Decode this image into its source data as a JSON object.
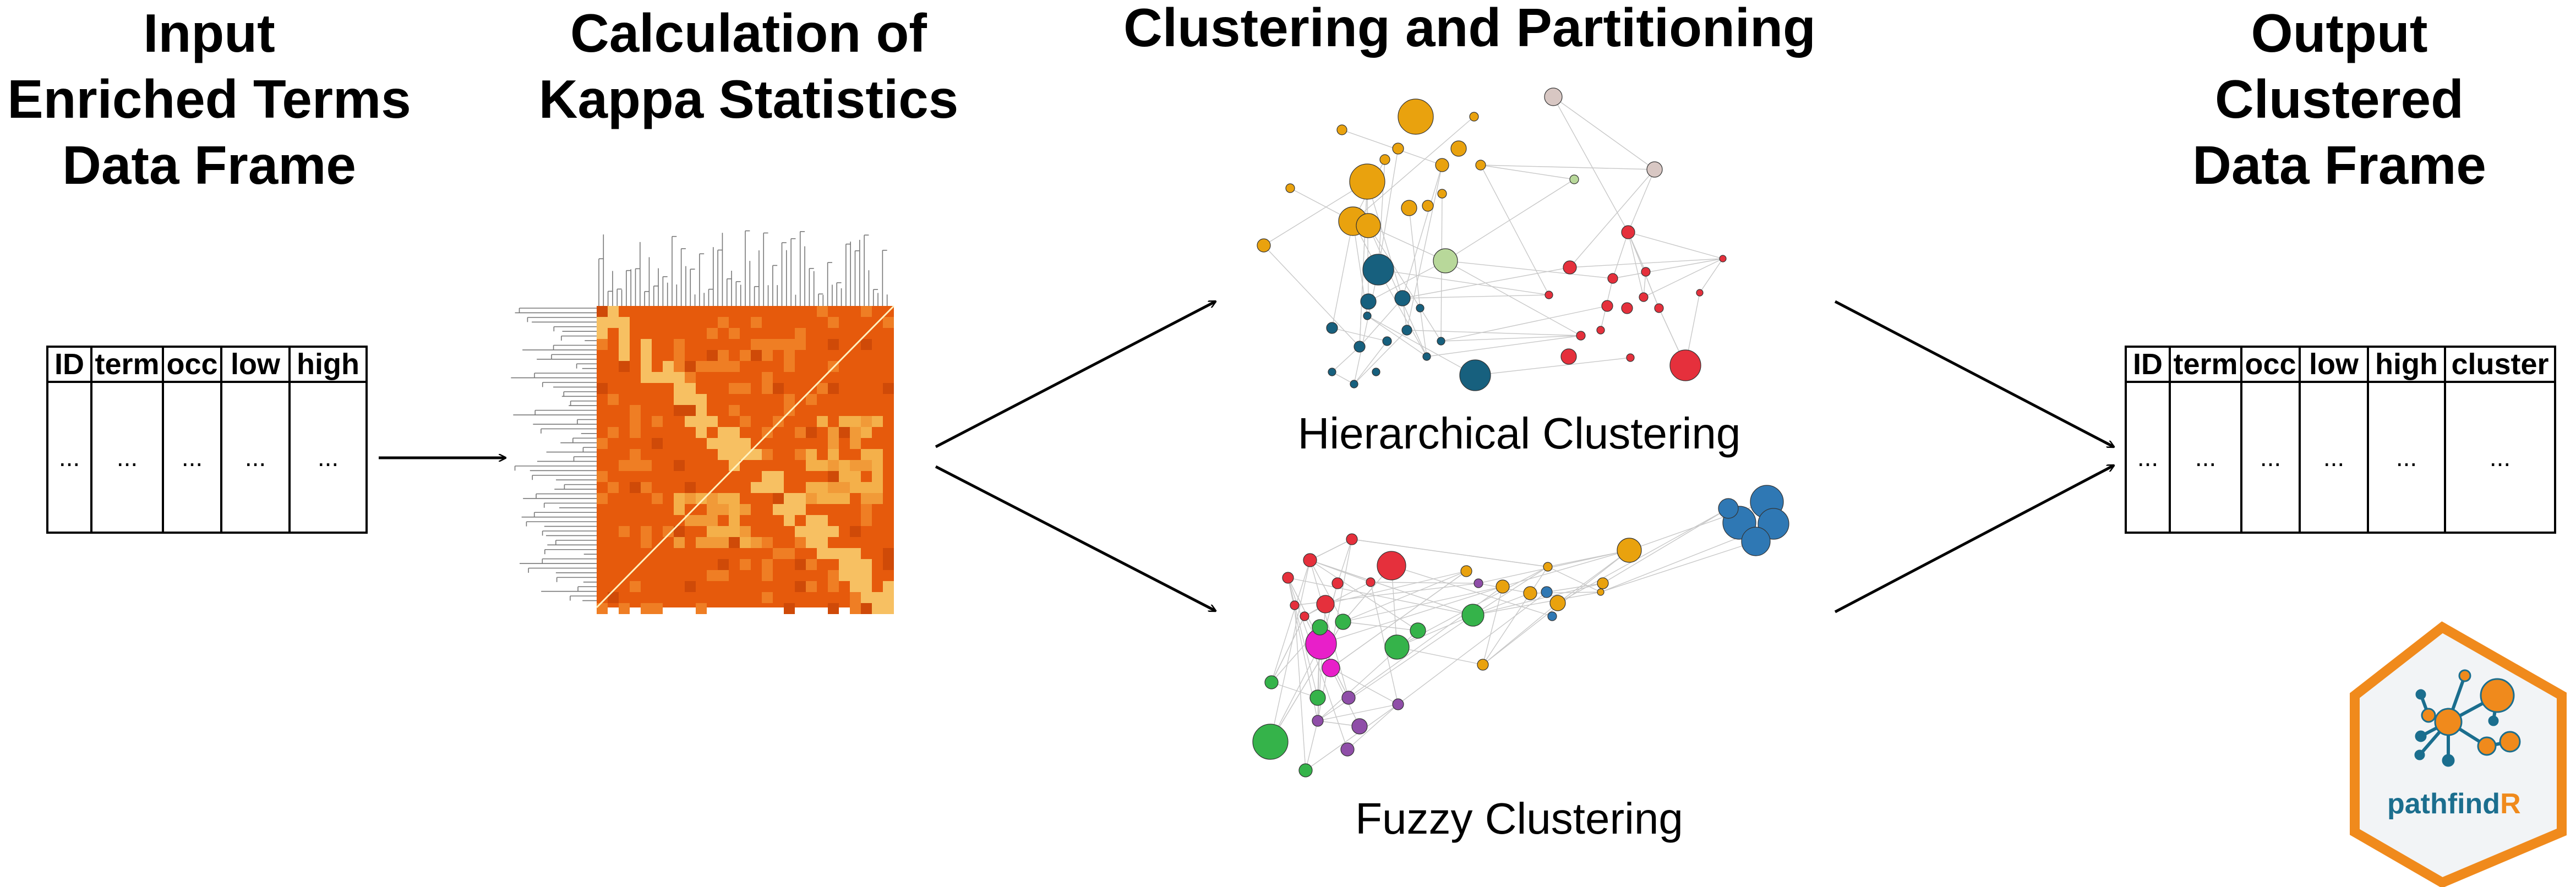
{
  "titles": {
    "input": [
      "Input",
      "Enriched Terms",
      "Data Frame"
    ],
    "kappa": [
      "Calculation of",
      "Kappa Statistics"
    ],
    "clustering": "Clustering and Partitioning",
    "output": [
      "Output",
      "Clustered",
      "Data Frame"
    ]
  },
  "input_table": {
    "headers": [
      "ID",
      "term",
      "occ",
      "low",
      "high"
    ],
    "cells": [
      "...",
      "...",
      "...",
      "...",
      "..."
    ]
  },
  "output_table": {
    "headers": [
      "ID",
      "term",
      "occ",
      "low",
      "high",
      "cluster"
    ],
    "cells": [
      "...",
      "...",
      "...",
      "...",
      "...",
      "..."
    ]
  },
  "captions": {
    "hierarchical": "Hierarchical Clustering",
    "fuzzy": "Fuzzy Clustering"
  },
  "logo": {
    "part1": "pathfind",
    "part2": "R",
    "colors": {
      "orange": "#f08a1c",
      "teal": "#1b6e8e",
      "bg": "#f2f4f6"
    }
  },
  "colors": {
    "heatmap_base": "#e65a0c",
    "heatmap_light": "#f7c062",
    "cluster_yellow": "#e9a20e",
    "cluster_teal": "#17607e",
    "cluster_red": "#e5303c",
    "cluster_green": "#35b34a",
    "cluster_purple": "#8f4ea8",
    "cluster_blue": "#2f78b4",
    "cluster_magenta": "#e81fc9"
  }
}
